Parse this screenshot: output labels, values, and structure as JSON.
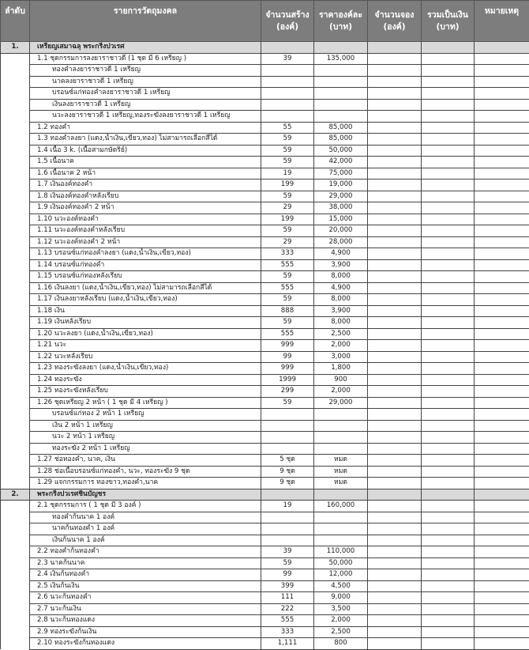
{
  "header": {
    "no": "ลำดับ",
    "item": "รายการวัตถุมงคล",
    "qty_built": [
      "จำนวนสร้าง",
      "(องค์)"
    ],
    "price": [
      "ราคาองค์ละ",
      "(บาท)"
    ],
    "qty_reserved": [
      "จำนวนจอง",
      "(องค์)"
    ],
    "total": [
      "รวมเป็นเงิน",
      "(บาท)"
    ],
    "note": "หมายเหตุ"
  },
  "sections": [
    {
      "no": "1.",
      "title": "เหรียญเสมาฉลุ พระกริ่งปวเรศ",
      "rows": [
        {
          "label": "1.1 ชุดกรรมการลงยาราชาวดี (1 ชุด มี 6 เหรียญ )",
          "qty": "39",
          "price": "135,000"
        },
        {
          "label": "ทองคำลงยาราชาวดี 1 เหรียญ",
          "sub": true
        },
        {
          "label": "นาคลงยาราชาวดี 1 เหรียญ",
          "sub": true
        },
        {
          "label": "บรอนซ์แก่ทองคำลงยาราชาวดี 1 เหรียญ",
          "sub": true
        },
        {
          "label": "เงินลงยาราชาวดี 1 เหรียญ",
          "sub": true
        },
        {
          "label": "นวะลงยาราชาวดี 1 เหรียญ,ทองระฆังลงยาราชาวดี 1 เหรียญ",
          "sub": true
        },
        {
          "label": "1.2 ทองคำ",
          "qty": "55",
          "price": "85,000"
        },
        {
          "label": "1.3 ทองคำลงยา (แดง,น้ำเงิน,เขียว,ทอง) ไม่สามารถเลือกสีได้",
          "qty": "59",
          "price": "85,000"
        },
        {
          "label": "1.4 เนื้อ 3 k. (เนื้อสามกษัตริย์)",
          "qty": "59",
          "price": "50,000"
        },
        {
          "label": "1.5 เนื้อนาค",
          "qty": "59",
          "price": "42,000"
        },
        {
          "label": "1.6 เนื้อนาค 2 หน้า",
          "qty": "19",
          "price": "75,000"
        },
        {
          "label": "1.7 เงินองค์ทองคำ",
          "qty": "199",
          "price": "19,000"
        },
        {
          "label": "1.8 เงินองค์ทองคำหลังเรียบ",
          "qty": "59",
          "price": "29,000"
        },
        {
          "label": "1.9 เงินองค์ทองคำ 2 หน้า",
          "qty": "29",
          "price": "38,000"
        },
        {
          "label": "1.10 นวะองค์ทองคำ",
          "qty": "199",
          "price": "15,000"
        },
        {
          "label": "1.11 นวะองค์ทองคำหลังเรียบ",
          "qty": "59",
          "price": "20,000"
        },
        {
          "label": "1.12 นวะองค์ทองคำ 2 หน้า",
          "qty": "29",
          "price": "28,000"
        },
        {
          "label": "1.13 บรอนซ์แก่ทองคำลงยา (แดง,น้ำเงิน,เขียว,ทอง)",
          "qty": "333",
          "price": "4,900"
        },
        {
          "label": "1.14 บรอนซ์แก่ทองคำ",
          "qty": "555",
          "price": "3,900"
        },
        {
          "label": "1.15 บรอนซ์แก่ทองหลังเรียบ",
          "qty": "59",
          "price": "8,000"
        },
        {
          "label": "1.16 เงินลงยา (แดง,น้ำเงิน,เขียว,ทอง) ไม่สามารถเลือกสีได้",
          "qty": "555",
          "price": "4,900"
        },
        {
          "label": "1.17 เงินลงยาหลังเรียบ (แดง,น้ำเงิน,เขียว,ทอง)",
          "qty": "59",
          "price": "8,000"
        },
        {
          "label": "1.18 เงิน",
          "qty": "888",
          "price": "3,900"
        },
        {
          "label": "1.19 เงินหลังเรียบ",
          "qty": "59",
          "price": "8,000"
        },
        {
          "label": "1.20 นวะลงยา (แดง,น้ำเงิน,เขียว,ทอง)",
          "qty": "555",
          "price": "2,500"
        },
        {
          "label": "1.21 นวะ",
          "qty": "999",
          "price": "2,000"
        },
        {
          "label": "1.22 นวะหลังเรียบ",
          "qty": "99",
          "price": "3,000"
        },
        {
          "label": "1.23 ทองระฆังลงยา (แดง,น้ำเงิน,เขียว,ทอง)",
          "qty": "999",
          "price": "1,800"
        },
        {
          "label": "1.24 ทองระฆัง",
          "qty": "1999",
          "price": "900"
        },
        {
          "label": "1.25 ทองระฆังหลังเรียบ",
          "qty": "299",
          "price": "2,000"
        },
        {
          "label": "1.26 ชุดเหรียญ 2 หน้า ( 1 ชุด มี 4 เหรียญ )",
          "qty": "59",
          "price": "29,000"
        },
        {
          "label": "บรอนซ์แก่ทอง 2 หน้า 1 เหรียญ",
          "sub": true
        },
        {
          "label": "เงิน 2 หน้า 1 เหรียญ",
          "sub": true
        },
        {
          "label": "นวะ 2 หน้า 1 เหรียญ",
          "sub": true
        },
        {
          "label": "ทองระฆัง 2 หน้า 1 เหรียญ",
          "sub": true
        },
        {
          "label": "1.27 ช่อทองคำ, นาค, เงิน",
          "qty": "5 ชุด",
          "price": "หมด"
        },
        {
          "label": "1.28 ช่อเนื้อบรอนซ์แก่ทองคำ, นวะ, ทองระฆัง 9 ชุด",
          "qty": "9 ชุด",
          "price": "หมด"
        },
        {
          "label": "1.29 แจกกรรมการ ทองขาว,ทองคำ,นาค",
          "qty": "9 ชุด",
          "price": "หมด"
        }
      ]
    },
    {
      "no": "2.",
      "title": "พระกริ่งปวเรศชินบัญชร",
      "rows": [
        {
          "label": "2.1 ชุดกรรมการ ( 1 ชุด มี 3 องค์ )",
          "qty": "19",
          "price": "160,000"
        },
        {
          "label": "ทองคำก้นนาค 1 องค์",
          "sub": true
        },
        {
          "label": "นาคก้นทองคำ 1 องค์",
          "sub": true
        },
        {
          "label": "เงินก้นนาค 1 องค์",
          "sub": true
        },
        {
          "label": "2.2 ทองคำก้นทองคำ",
          "qty": "39",
          "price": "110,000"
        },
        {
          "label": "2.3 นาคก้นนาค",
          "qty": "59",
          "price": "50,000"
        },
        {
          "label": "2.4 เงินก้นทองคำ",
          "qty": "99",
          "price": "12,000"
        },
        {
          "label": "2.5 เงินก้นเงิน",
          "qty": "399",
          "price": "4,500"
        },
        {
          "label": "2.6 นวะก้นทองคำ",
          "qty": "111",
          "price": "9,000"
        },
        {
          "label": "2.7 นวะก้นเงิน",
          "qty": "222",
          "price": "3,500"
        },
        {
          "label": "2.8 นวะก้นทองแดง",
          "qty": "555",
          "price": "2,000"
        },
        {
          "label": "2.9 ทองระฆังก้นเงิน",
          "qty": "333",
          "price": "2,500"
        },
        {
          "label": "2.10 ทองระฆังก้นทองแดง",
          "qty": "1,111",
          "price": "800"
        }
      ]
    }
  ]
}
